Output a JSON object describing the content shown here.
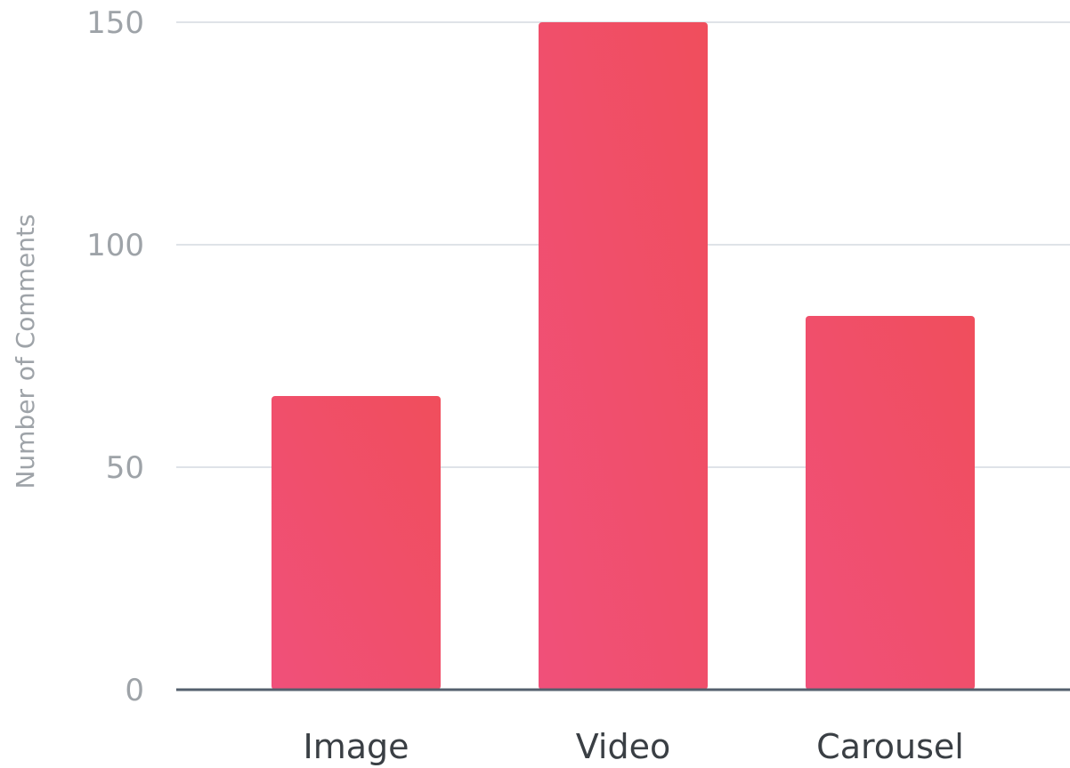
{
  "chart_data": {
    "type": "bar",
    "title": "",
    "xlabel": "",
    "ylabel": "Number of Comments",
    "categories": [
      "Image",
      "Video",
      "Carousel"
    ],
    "values": [
      66,
      150,
      84
    ],
    "ylim": [
      0,
      150
    ],
    "yticks": [
      0,
      50,
      100,
      150
    ],
    "grid": true,
    "legend": "none",
    "bar_color_top": "#f04e5c",
    "bar_color_bottom": "#f0507a",
    "grid_color": "#dfe3e8",
    "baseline_color": "#54606e"
  }
}
